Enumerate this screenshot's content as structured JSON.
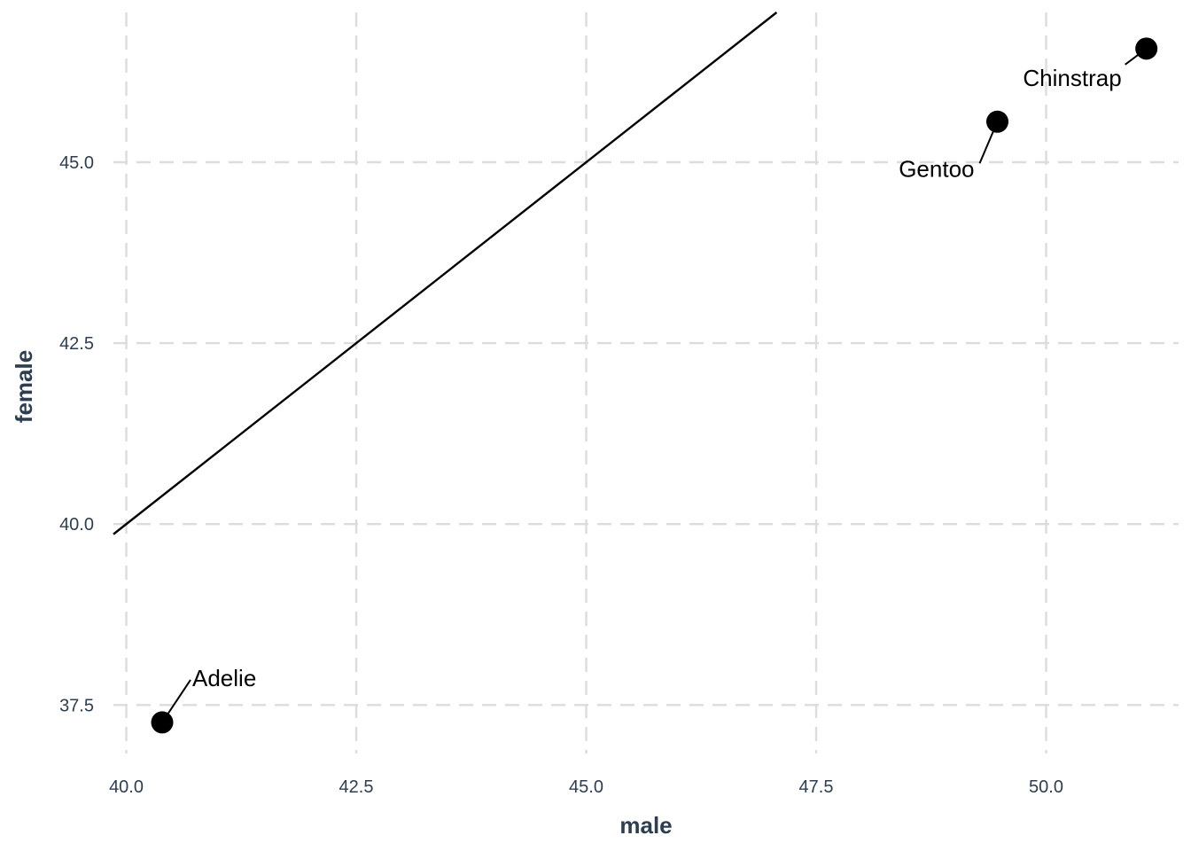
{
  "chart_data": {
    "type": "scatter",
    "title": "",
    "xlabel": "male",
    "ylabel": "female",
    "xlim": [
      39.86,
      51.44
    ],
    "ylim": [
      36.83,
      47.07
    ],
    "x_ticks": [
      "40.0",
      "42.5",
      "45.0",
      "47.5",
      "50.0"
    ],
    "y_ticks": [
      "37.5",
      "40.0",
      "42.5",
      "45.0"
    ],
    "x_tick_values": [
      40.0,
      42.5,
      45.0,
      47.5,
      50.0
    ],
    "y_tick_values": [
      37.5,
      40.0,
      42.5,
      45.0
    ],
    "grid": true,
    "reference_line": {
      "slope": 1,
      "intercept": 0
    },
    "points": [
      {
        "label": "Adelie",
        "x": 40.39,
        "y": 37.26
      },
      {
        "label": "Gentoo",
        "x": 49.47,
        "y": 45.56
      },
      {
        "label": "Chinstrap",
        "x": 51.09,
        "y": 46.57
      }
    ],
    "colors": {
      "points": "#000000",
      "line": "#000000",
      "grid": "#dcdcdc",
      "axis_text": "#2c3e50"
    }
  }
}
